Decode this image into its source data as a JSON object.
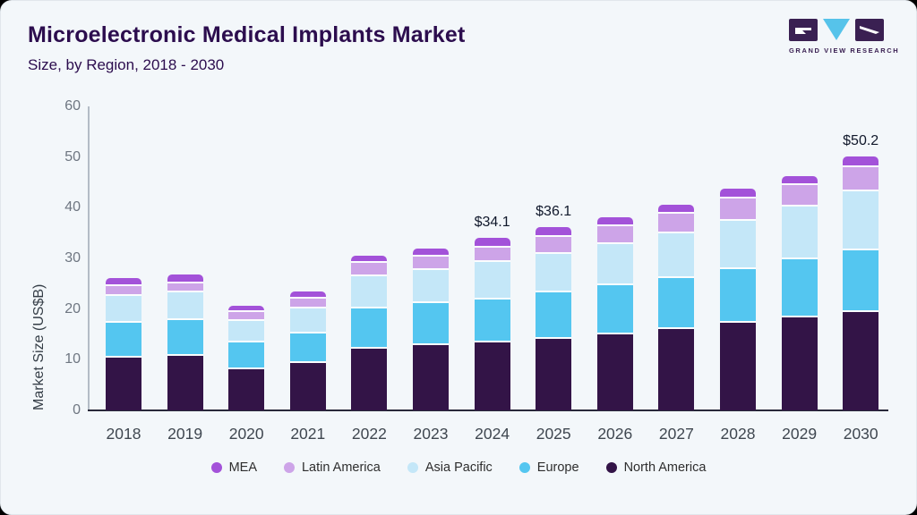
{
  "page": {
    "background": "#000000",
    "card_background": "#f3f7fa"
  },
  "header": {
    "title": "Microelectronic Medical Implants Market",
    "subtitle": "Size, by Region, 2018 - 2030",
    "logo": {
      "brand_text": "GRAND VIEW RESEARCH",
      "block_color": "#3a2052",
      "accent_color": "#56c3ea"
    }
  },
  "chart_data": {
    "type": "bar",
    "stacked": true,
    "title": "Microelectronic Medical Implants Market",
    "subtitle": "Size, by Region, 2018 - 2030",
    "xlabel": "",
    "ylabel": "Market Size (US$B)",
    "ylim": [
      0,
      60
    ],
    "yticks": [
      "0",
      "10",
      "20",
      "30",
      "40",
      "50",
      "60"
    ],
    "grid": false,
    "legend_position": "bottom",
    "categories": [
      "2018",
      "2019",
      "2020",
      "2021",
      "2022",
      "2023",
      "2024",
      "2025",
      "2026",
      "2027",
      "2028",
      "2029",
      "2030"
    ],
    "series": [
      {
        "name": "North America",
        "color": "#331447",
        "values": [
          10.8,
          11.2,
          8.5,
          9.7,
          12.6,
          13.3,
          13.7,
          14.4,
          15.4,
          16.4,
          17.7,
          18.7,
          19.8
        ]
      },
      {
        "name": "Europe",
        "color": "#54c6f0",
        "values": [
          6.8,
          7.0,
          5.3,
          5.9,
          7.9,
          8.2,
          8.6,
          9.2,
          9.6,
          10.1,
          10.5,
          11.5,
          12.2
        ]
      },
      {
        "name": "Asia Pacific",
        "color": "#c4e7f8",
        "values": [
          5.4,
          5.4,
          4.2,
          4.9,
          6.4,
          6.6,
          7.4,
          7.6,
          8.2,
          8.8,
          9.5,
          10.4,
          11.6
        ]
      },
      {
        "name": "Latin America",
        "color": "#cda4e8",
        "values": [
          1.9,
          1.9,
          1.8,
          2.0,
          2.6,
          2.6,
          2.8,
          3.4,
          3.5,
          3.9,
          4.4,
          4.2,
          4.8
        ]
      },
      {
        "name": "MEA",
        "color": "#a352d9",
        "values": [
          1.2,
          1.3,
          0.8,
          1.0,
          1.1,
          1.3,
          1.6,
          1.5,
          1.5,
          1.4,
          1.6,
          1.5,
          1.8
        ]
      }
    ],
    "totals": [
      26.1,
      26.8,
      20.6,
      23.5,
      30.6,
      32.0,
      34.1,
      36.1,
      38.2,
      40.6,
      43.7,
      46.3,
      50.2
    ],
    "legend_order": [
      "MEA",
      "Latin America",
      "Asia Pacific",
      "Europe",
      "North America"
    ],
    "annotations": [
      {
        "category": "2024",
        "text": "$34.1"
      },
      {
        "category": "2025",
        "text": "$36.1"
      },
      {
        "category": "2030",
        "text": "$50.2"
      }
    ]
  }
}
